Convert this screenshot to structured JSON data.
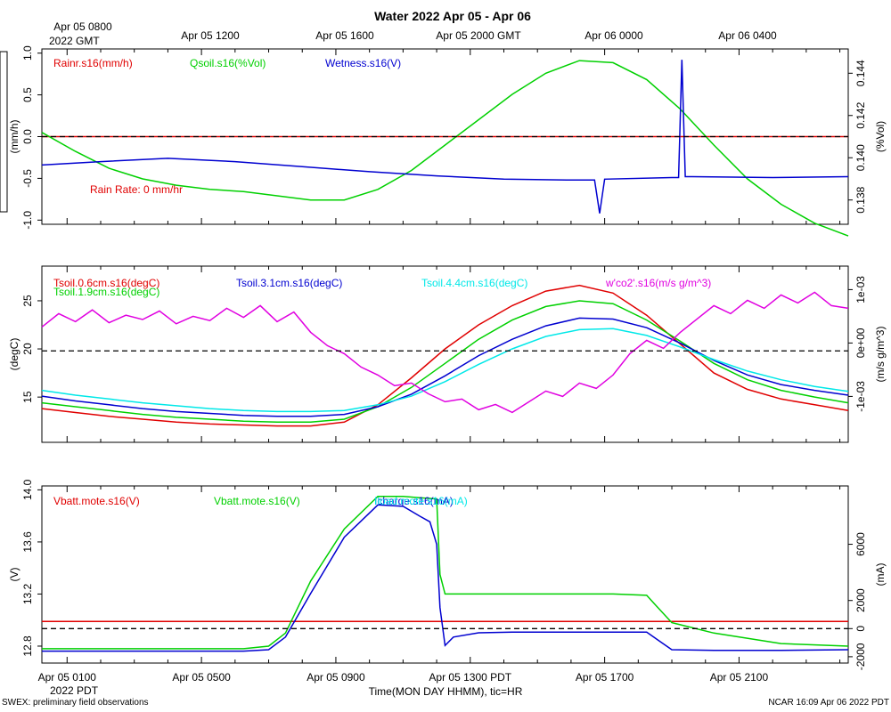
{
  "title": "Water 2022 Apr 05 - Apr 06",
  "top_time_axis": {
    "ticks": [
      "Apr 05 0800",
      "Apr 05 1200",
      "Apr 05 1600",
      "Apr 05 2000 GMT",
      "Apr 06 0000",
      "Apr 06 0400"
    ],
    "year_label": "2022 GMT"
  },
  "bottom_time_axis": {
    "ticks": [
      "Apr 05 0100",
      "Apr 05 0500",
      "Apr 05 0900",
      "Apr 05 1300 PDT",
      "Apr 05 1700",
      "Apr 05 2100"
    ],
    "year_label": "2022 PDT",
    "axis_title": "Time(MON DAY HHMM), tic=HR"
  },
  "footer": {
    "left": "SWEX: preliminary field observations",
    "right": "NCAR 16:09 Apr 06 2022 PDT"
  },
  "colors": {
    "red": "#e00000",
    "green": "#00d000",
    "blue": "#0000d0",
    "cyan": "#00e8e8",
    "magenta": "#e000e0"
  },
  "chart_data": [
    {
      "type": "line",
      "panel": "water",
      "x_range_hours_pdt": [
        0.25,
        24.25
      ],
      "left_axis": {
        "label": "(mm/h)",
        "range": [
          -1.05,
          1.05
        ],
        "ticks": [
          "1.0",
          "0.5",
          "0.0",
          "-0.5",
          "-1.0"
        ]
      },
      "right_axis": {
        "label": "(%Vol)",
        "range": [
          0.13685,
          0.14515
        ],
        "ticks": [
          "0.144",
          "0.142",
          "0.140",
          "0.138"
        ]
      },
      "reference_line": 0.0,
      "annotation": "Rain Rate: 0 mm/hr",
      "series": [
        {
          "name": "Rainr.s16(mm/h)",
          "color": "red",
          "axis": "left",
          "x": [
            0.25,
            24.25
          ],
          "values": [
            0.0,
            0.0
          ]
        },
        {
          "name": "Qsoil.s16(%Vol)",
          "color": "green",
          "axis": "right",
          "x": [
            0.25,
            1.25,
            2.25,
            3.25,
            4.25,
            5.25,
            6.25,
            7.25,
            8.25,
            9.25,
            10.25,
            11.25,
            12.25,
            13.25,
            14.25,
            15.25,
            16.25,
            17.25,
            18.25,
            19.25,
            20.25,
            21.25,
            22.25,
            23.25,
            24.25
          ],
          "values": [
            0.1412,
            0.1403,
            0.1395,
            0.139,
            0.1387,
            0.1385,
            0.1384,
            0.1382,
            0.138,
            0.138,
            0.1385,
            0.1394,
            0.1406,
            0.1418,
            0.143,
            0.144,
            0.1446,
            0.1445,
            0.1437,
            0.1423,
            0.1406,
            0.139,
            0.1378,
            0.1369,
            0.1363
          ]
        },
        {
          "name": "Wetness.s16(V)",
          "color": "blue",
          "axis": "left",
          "x": [
            0.25,
            2.0,
            4.0,
            6.0,
            8.0,
            10.0,
            12.0,
            14.0,
            16.0,
            16.7,
            16.85,
            17.0,
            19.0,
            19.2,
            19.3,
            19.4,
            19.6,
            22.0,
            24.25
          ],
          "values": [
            -0.34,
            -0.3,
            -0.26,
            -0.3,
            -0.36,
            -0.42,
            -0.47,
            -0.51,
            -0.52,
            -0.52,
            -0.92,
            -0.51,
            -0.49,
            -0.49,
            0.92,
            -0.48,
            -0.48,
            -0.49,
            -0.48
          ]
        }
      ]
    },
    {
      "type": "line",
      "panel": "soil_temperature",
      "x_range_hours_pdt": [
        0.25,
        24.25
      ],
      "left_axis": {
        "label": "(degC)",
        "range": [
          10.3,
          28.6
        ],
        "ticks": [
          "25",
          "20",
          "15"
        ]
      },
      "right_axis": {
        "label": "(m/s g/m^3)",
        "range": [
          -0.00186,
          0.00144
        ],
        "ticks": [
          "1e-03",
          "0e+00",
          "-1e-03"
        ]
      },
      "reference_line": 19.8,
      "series": [
        {
          "name": "Tsoil.0.6cm.s16(degC)",
          "color": "red",
          "axis": "left",
          "x": [
            0.25,
            1.25,
            2.25,
            3.25,
            4.25,
            5.25,
            6.25,
            7.25,
            8.25,
            9.25,
            10.25,
            11.25,
            12.25,
            13.25,
            14.25,
            15.25,
            16.25,
            17.25,
            18.25,
            19.25,
            20.25,
            21.25,
            22.25,
            23.25,
            24.25
          ],
          "values": [
            13.8,
            13.4,
            13.0,
            12.7,
            12.4,
            12.2,
            12.1,
            12.0,
            12.0,
            12.4,
            14.2,
            17.0,
            20.0,
            22.5,
            24.5,
            26.0,
            26.6,
            25.8,
            23.5,
            20.5,
            17.5,
            15.8,
            14.8,
            14.2,
            13.6
          ]
        },
        {
          "name": "Tsoil.1.9cm.s16(degC)",
          "color": "green",
          "axis": "left",
          "x": [
            0.25,
            1.25,
            2.25,
            3.25,
            4.25,
            5.25,
            6.25,
            7.25,
            8.25,
            9.25,
            10.25,
            11.25,
            12.25,
            13.25,
            14.25,
            15.25,
            16.25,
            17.25,
            18.25,
            19.25,
            20.25,
            21.25,
            22.25,
            23.25,
            24.25
          ],
          "values": [
            14.4,
            14.0,
            13.6,
            13.2,
            12.9,
            12.7,
            12.5,
            12.4,
            12.4,
            12.7,
            14.0,
            16.0,
            18.5,
            21.0,
            23.0,
            24.4,
            25.0,
            24.7,
            23.0,
            20.8,
            18.5,
            16.8,
            15.7,
            15.0,
            14.4
          ]
        },
        {
          "name": "Tsoil.3.1cm.s16(degC)",
          "color": "blue",
          "axis": "left",
          "x": [
            0.25,
            1.25,
            2.25,
            3.25,
            4.25,
            5.25,
            6.25,
            7.25,
            8.25,
            9.25,
            10.25,
            11.25,
            12.25,
            13.25,
            14.25,
            15.25,
            16.25,
            17.25,
            18.25,
            19.25,
            20.25,
            21.25,
            22.25,
            23.25,
            24.25
          ],
          "values": [
            15.1,
            14.6,
            14.2,
            13.8,
            13.5,
            13.3,
            13.1,
            13.0,
            13.0,
            13.2,
            14.0,
            15.3,
            17.2,
            19.3,
            21.0,
            22.4,
            23.2,
            23.1,
            22.2,
            20.6,
            18.8,
            17.3,
            16.3,
            15.7,
            15.2
          ]
        },
        {
          "name": "Tsoil.4.4cm.s16(degC)",
          "color": "cyan",
          "axis": "left",
          "x": [
            0.25,
            1.25,
            2.25,
            3.25,
            4.25,
            5.25,
            6.25,
            7.25,
            8.25,
            9.25,
            10.25,
            11.25,
            12.25,
            13.25,
            14.25,
            15.25,
            16.25,
            17.25,
            18.25,
            19.25,
            20.25,
            21.25,
            22.25,
            23.25,
            24.25
          ],
          "values": [
            15.7,
            15.2,
            14.8,
            14.4,
            14.1,
            13.8,
            13.6,
            13.5,
            13.5,
            13.6,
            14.2,
            15.1,
            16.6,
            18.4,
            20.0,
            21.3,
            22.0,
            22.1,
            21.4,
            20.2,
            18.9,
            17.7,
            16.8,
            16.1,
            15.6
          ]
        },
        {
          "name": "w'co2'.s16(m/s g/m^3)",
          "color": "magenta",
          "axis": "right",
          "x": [
            0.25,
            0.75,
            1.25,
            1.75,
            2.25,
            2.75,
            3.25,
            3.75,
            4.25,
            4.75,
            5.25,
            5.75,
            6.25,
            6.75,
            7.25,
            7.75,
            8.25,
            8.75,
            9.25,
            9.75,
            10.25,
            10.75,
            11.25,
            11.75,
            12.25,
            12.75,
            13.25,
            13.75,
            14.25,
            14.75,
            15.25,
            15.75,
            16.25,
            16.75,
            17.25,
            17.75,
            18.25,
            18.75,
            19.25,
            19.75,
            20.25,
            20.75,
            21.25,
            21.75,
            22.25,
            22.75,
            23.25,
            23.75,
            24.25
          ],
          "values": [
            0.0003,
            0.00055,
            0.0004,
            0.00062,
            0.00038,
            0.00052,
            0.00044,
            0.0006,
            0.00036,
            0.0005,
            0.00042,
            0.00065,
            0.00048,
            0.0007,
            0.0004,
            0.00058,
            0.0002,
            -5e-05,
            -0.0002,
            -0.00045,
            -0.0006,
            -0.0008,
            -0.00075,
            -0.00095,
            -0.0011,
            -0.00105,
            -0.00125,
            -0.00115,
            -0.0013,
            -0.0011,
            -0.0009,
            -0.001,
            -0.00075,
            -0.00085,
            -0.0006,
            -0.0002,
            5e-05,
            -0.0001,
            0.0002,
            0.00045,
            0.0007,
            0.00055,
            0.0008,
            0.00065,
            0.0009,
            0.00075,
            0.00095,
            0.0007,
            0.00065
          ]
        }
      ]
    },
    {
      "type": "line",
      "panel": "power",
      "x_range_hours_pdt": [
        0.25,
        24.25
      ],
      "left_axis": {
        "label": "(V)",
        "range": [
          12.67,
          14.03
        ],
        "ticks": [
          "14.0",
          "13.6",
          "13.2",
          "12.8"
        ]
      },
      "right_axis": {
        "label": "(mA)",
        "range": [
          -2450,
          10150
        ],
        "ticks": [
          "6000",
          "2000",
          "0",
          "-2000"
        ]
      },
      "reference_line_right": 0,
      "series": [
        {
          "name": "Vbatt.mote.s16(V)",
          "color": "red",
          "axis": "left",
          "x": [
            0.25,
            24.25
          ],
          "values": [
            12.99,
            12.99
          ]
        },
        {
          "name": "Vbatt.mote.s16(V)",
          "color": "green",
          "axis": "left",
          "x": [
            0.25,
            2.25,
            4.25,
            6.25,
            7.0,
            7.5,
            8.25,
            9.25,
            10.25,
            11.0,
            11.5,
            12.0,
            12.1,
            12.25,
            13.25,
            14.25,
            15.25,
            16.25,
            17.25,
            18.25,
            18.5,
            19.0,
            20.25,
            22.25,
            24.25
          ],
          "values": [
            12.78,
            12.78,
            12.78,
            12.78,
            12.8,
            12.9,
            13.3,
            13.7,
            13.95,
            13.95,
            13.94,
            13.93,
            13.35,
            13.2,
            13.2,
            13.2,
            13.2,
            13.2,
            13.2,
            13.19,
            13.12,
            12.98,
            12.9,
            12.82,
            12.8
          ]
        },
        {
          "name": "Icharge.s16(mA)",
          "color": "blue",
          "axis": "right",
          "x": [
            0.25,
            2.25,
            4.25,
            6.25,
            7.0,
            7.5,
            8.25,
            9.25,
            10.25,
            11.0,
            11.5,
            11.8,
            12.0,
            12.1,
            12.25,
            12.5,
            13.25,
            14.25,
            16.25,
            17.25,
            18.25,
            18.7,
            19.0,
            20.25,
            22.25,
            24.25
          ],
          "values": [
            -1600,
            -1600,
            -1600,
            -1600,
            -1500,
            -600,
            2500,
            6500,
            8800,
            8700,
            8000,
            7600,
            6000,
            1500,
            -1200,
            -600,
            -300,
            -250,
            -250,
            -250,
            -250,
            -1000,
            -1500,
            -1550,
            -1550,
            -1500
          ]
        },
        {
          "name": "Iload.mote.s16(mA)",
          "color": "cyan",
          "axis": "right",
          "x": [],
          "values": []
        }
      ]
    }
  ]
}
